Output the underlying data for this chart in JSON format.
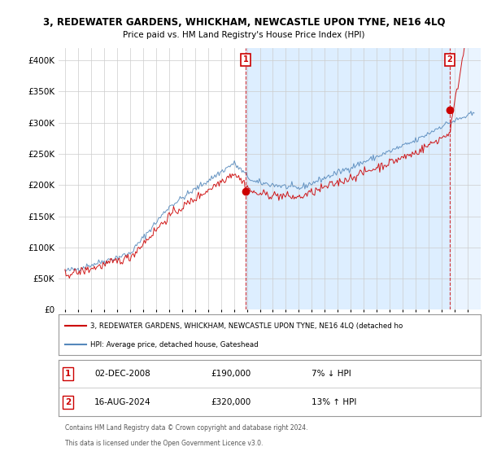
{
  "title": "3, REDEWATER GARDENS, WHICKHAM, NEWCASTLE UPON TYNE, NE16 4LQ",
  "subtitle": "Price paid vs. HM Land Registry's House Price Index (HPI)",
  "ylim": [
    0,
    420000
  ],
  "yticks": [
    0,
    50000,
    100000,
    150000,
    200000,
    250000,
    300000,
    350000,
    400000
  ],
  "ytick_labels": [
    "£0",
    "£50K",
    "£100K",
    "£150K",
    "£200K",
    "£250K",
    "£300K",
    "£350K",
    "£400K"
  ],
  "legend_red": "3, REDEWATER GARDENS, WHICKHAM, NEWCASTLE UPON TYNE, NE16 4LQ (detached ho",
  "legend_blue": "HPI: Average price, detached house, Gateshead",
  "annotation1_date": "02-DEC-2008",
  "annotation1_price": "£190,000",
  "annotation1_hpi": "7% ↓ HPI",
  "annotation2_date": "16-AUG-2024",
  "annotation2_price": "£320,000",
  "annotation2_hpi": "13% ↑ HPI",
  "footer1": "Contains HM Land Registry data © Crown copyright and database right 2024.",
  "footer2": "This data is licensed under the Open Government Licence v3.0.",
  "red_color": "#cc0000",
  "blue_color": "#5588bb",
  "shade_color": "#ddeeff",
  "grid_color": "#cccccc",
  "bg_color": "#ffffff",
  "ann_badge_border": "#cc0000",
  "ann1_x": 2008.92,
  "ann1_y": 190000,
  "ann2_x": 2024.62,
  "ann2_y": 320000,
  "xmin": 1994.5,
  "xmax": 2027.0
}
